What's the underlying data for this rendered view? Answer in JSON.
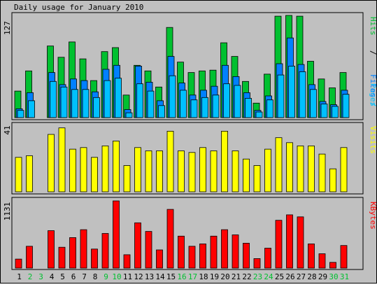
{
  "title": "Daily usage for January 2010",
  "colors": {
    "background": "#c0c0c0",
    "panel": "#c0c0c0",
    "hits": "#00c030",
    "files": "#0080ff",
    "pages": "#00c0ff",
    "visits": "#ffff00",
    "kbytes": "#ff0000",
    "weekend": "#00c030",
    "weekday": "#000000"
  },
  "chart_data": [
    {
      "type": "bar",
      "title": "Daily usage for January 2010",
      "ylabel": "Pages/Files/Hits",
      "ymax_label": "127",
      "ylim": [
        0,
        127
      ],
      "categories": [
        "1",
        "2",
        "3",
        "4",
        "5",
        "6",
        "7",
        "8",
        "9",
        "10",
        "11",
        "12",
        "13",
        "14",
        "15",
        "16",
        "17",
        "18",
        "19",
        "20",
        "21",
        "22",
        "23",
        "24",
        "25",
        "26",
        "27",
        "28",
        "29",
        "30",
        "31"
      ],
      "series": [
        {
          "name": "Hits",
          "values": [
            33,
            58,
            0,
            89,
            75,
            94,
            73,
            46,
            82,
            87,
            28,
            65,
            58,
            38,
            112,
            69,
            56,
            58,
            59,
            93,
            76,
            45,
            18,
            54,
            126,
            127,
            126,
            70,
            48,
            37,
            56
          ]
        },
        {
          "name": "Files",
          "values": [
            11,
            31,
            0,
            56,
            41,
            48,
            46,
            32,
            60,
            65,
            10,
            64,
            44,
            21,
            76,
            43,
            28,
            34,
            39,
            65,
            51,
            31,
            9,
            27,
            67,
            99,
            66,
            41,
            20,
            16,
            34
          ]
        },
        {
          "name": "Pages",
          "values": [
            9,
            21,
            0,
            45,
            38,
            35,
            35,
            25,
            46,
            49,
            6,
            42,
            33,
            15,
            52,
            34,
            22,
            25,
            28,
            42,
            40,
            24,
            7,
            22,
            53,
            64,
            57,
            35,
            17,
            14,
            29
          ]
        }
      ]
    },
    {
      "type": "bar",
      "ylabel": "Visits",
      "ymax_label": "41",
      "ylim": [
        0,
        41
      ],
      "categories": [
        "1",
        "2",
        "3",
        "4",
        "5",
        "6",
        "7",
        "8",
        "9",
        "10",
        "11",
        "12",
        "13",
        "14",
        "15",
        "16",
        "17",
        "18",
        "19",
        "20",
        "21",
        "22",
        "23",
        "24",
        "25",
        "26",
        "27",
        "28",
        "29",
        "30",
        "31"
      ],
      "series": [
        {
          "name": "Visits",
          "values": [
            21,
            22,
            0,
            35,
            39,
            26,
            27,
            21,
            28,
            31,
            16,
            27,
            25,
            25,
            37,
            25,
            24,
            27,
            25,
            37,
            25,
            20,
            16,
            26,
            33,
            30,
            28,
            28,
            23,
            14,
            27
          ]
        }
      ]
    },
    {
      "type": "bar",
      "ylabel": "KBytes",
      "ymax_label": "1131",
      "ylim": [
        0,
        1131
      ],
      "categories": [
        "1",
        "2",
        "3",
        "4",
        "5",
        "6",
        "7",
        "8",
        "9",
        "10",
        "11",
        "12",
        "13",
        "14",
        "15",
        "16",
        "17",
        "18",
        "19",
        "20",
        "21",
        "22",
        "23",
        "24",
        "25",
        "26",
        "27",
        "28",
        "29",
        "30",
        "31"
      ],
      "series": [
        {
          "name": "KBytes",
          "values": [
            152,
            367,
            0,
            630,
            351,
            514,
            647,
            320,
            583,
            1131,
            225,
            762,
            617,
            306,
            989,
            538,
            368,
            408,
            538,
            647,
            560,
            420,
            160,
            336,
            805,
            897,
            862,
            408,
            242,
            97,
            380
          ]
        }
      ]
    }
  ],
  "x_labels": [
    "1",
    "2",
    "3",
    "4",
    "5",
    "6",
    "7",
    "8",
    "9",
    "10",
    "11",
    "12",
    "13",
    "14",
    "15",
    "16",
    "17",
    "18",
    "19",
    "20",
    "21",
    "22",
    "23",
    "24",
    "25",
    "26",
    "27",
    "28",
    "29",
    "30",
    "31"
  ],
  "weekend_days": [
    "2",
    "3",
    "9",
    "10",
    "16",
    "17",
    "23",
    "24",
    "30",
    "31"
  ]
}
